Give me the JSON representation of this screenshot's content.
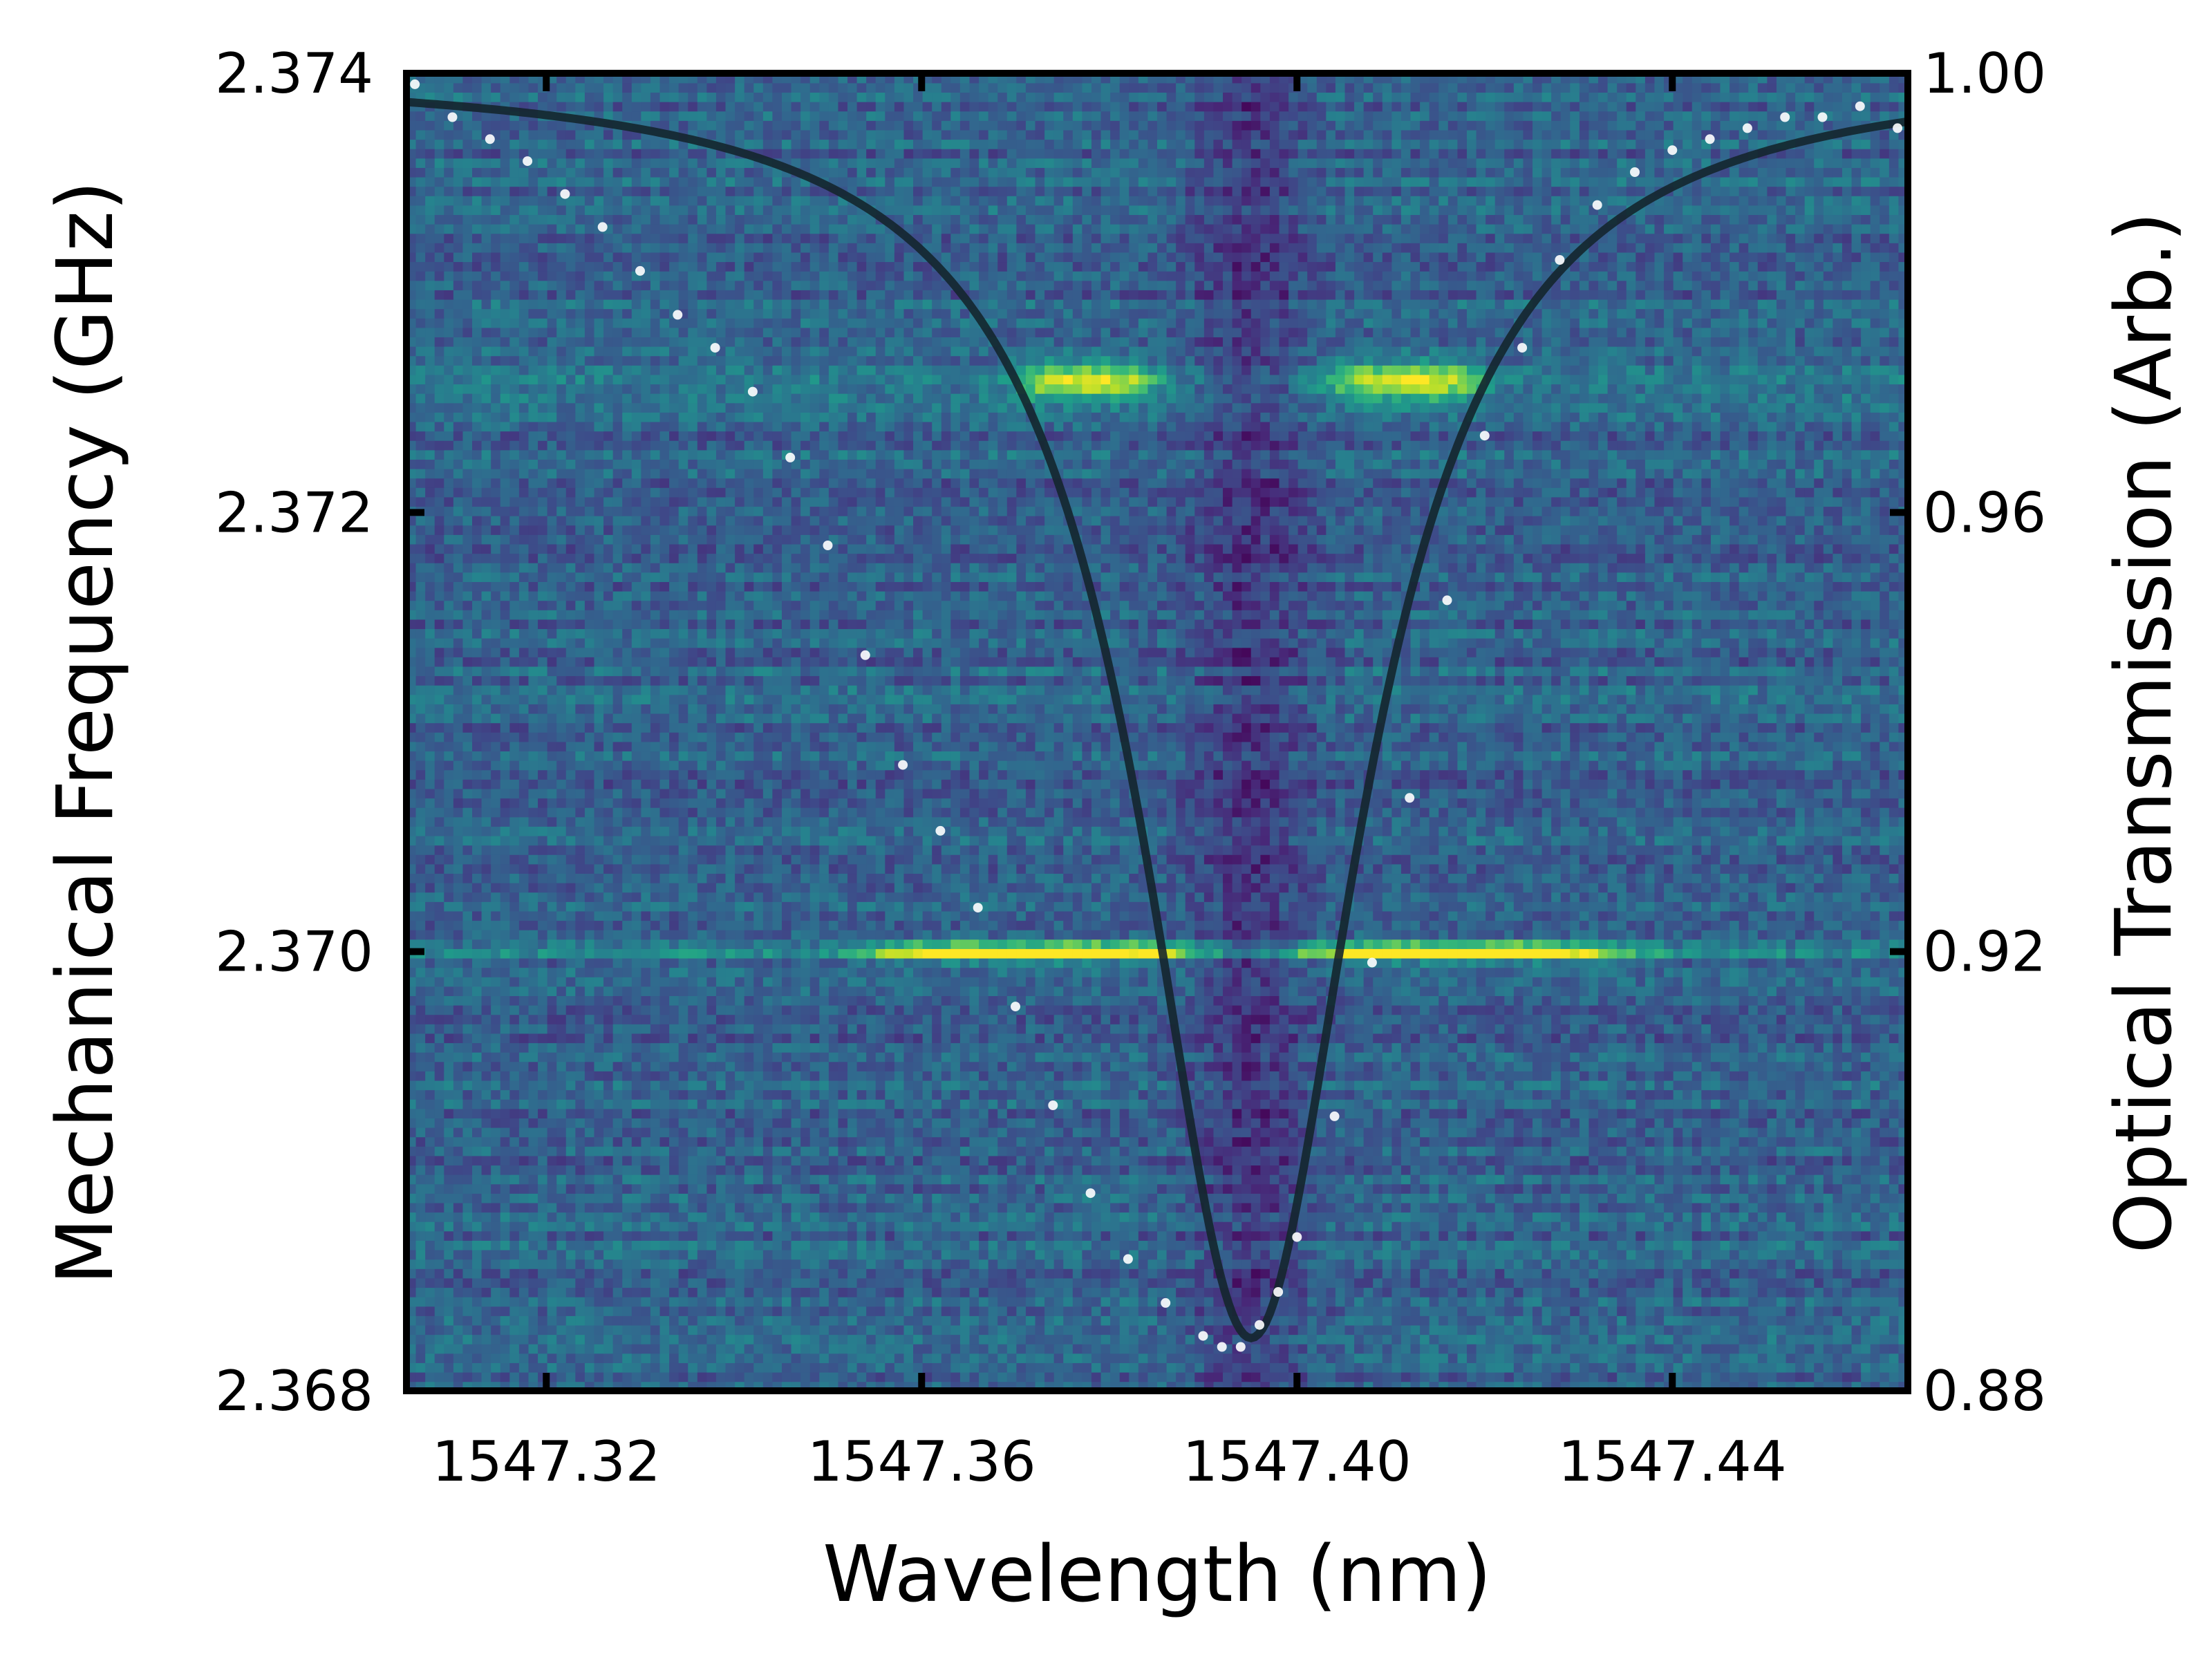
{
  "chart_data": {
    "type": "heatmap",
    "title": "",
    "xlabel": "Wavelength (nm)",
    "ylabel": "Mechanical Frequency (GHz)",
    "y2label": "Optical Transmission (Arb.)",
    "xlim": [
      1547.3051,
      1547.4651
    ],
    "ylim": [
      2.368,
      2.374
    ],
    "y2lim": [
      0.88,
      1.0
    ],
    "xticks": [
      1547.32,
      1547.36,
      1547.4,
      1547.44
    ],
    "xtick_labels": [
      "1547.32",
      "1547.36",
      "1547.40",
      "1547.44"
    ],
    "yticks": [
      2.368,
      2.37,
      2.372,
      2.374
    ],
    "ytick_labels": [
      "2.368",
      "2.370",
      "2.372",
      "2.374"
    ],
    "y2ticks": [
      0.88,
      0.92,
      0.96,
      1.0
    ],
    "y2tick_labels": [
      "0.88",
      "0.92",
      "0.96",
      "1.00"
    ],
    "colormap": "viridis",
    "heatmap_features": {
      "resonance_center_nm": 1547.3951,
      "background_level": 0.32,
      "center_dark_width_nm": 0.006,
      "bands": [
        {
          "freq_ghz": 2.37,
          "width_ghz": 4e-05,
          "peak_level": 1.0,
          "left_lobe_nm": [
            1547.355,
            1547.39
          ],
          "right_lobe_nm": [
            1547.4,
            1547.435
          ]
        },
        {
          "freq_ghz": 2.3726,
          "width_ghz": 8e-05,
          "peak_level": 0.85,
          "left_lobe_nm": [
            1547.37,
            1547.385
          ],
          "right_lobe_nm": [
            1547.403,
            1547.42
          ]
        }
      ]
    },
    "series": [
      {
        "type": "scatter",
        "axis": "right",
        "color": "#ffffff",
        "x": [
          1547.306,
          1547.31,
          1547.314,
          1547.318,
          1547.322,
          1547.326,
          1547.33,
          1547.334,
          1547.338,
          1547.342,
          1547.346,
          1547.35,
          1547.354,
          1547.358,
          1547.362,
          1547.366,
          1547.37,
          1547.374,
          1547.378,
          1547.382,
          1547.386,
          1547.39,
          1547.392,
          1547.394,
          1547.396,
          1547.398,
          1547.4,
          1547.404,
          1547.408,
          1547.412,
          1547.416,
          1547.42,
          1547.424,
          1547.428,
          1547.432,
          1547.436,
          1547.44,
          1547.444,
          1547.448,
          1547.452,
          1547.456,
          1547.46,
          1547.464
        ],
        "y": [
          0.999,
          0.996,
          0.994,
          0.992,
          0.989,
          0.986,
          0.982,
          0.978,
          0.975,
          0.971,
          0.965,
          0.957,
          0.947,
          0.937,
          0.931,
          0.924,
          0.915,
          0.906,
          0.898,
          0.892,
          0.888,
          0.885,
          0.884,
          0.884,
          0.886,
          0.889,
          0.894,
          0.905,
          0.919,
          0.934,
          0.952,
          0.967,
          0.975,
          0.983,
          0.988,
          0.991,
          0.993,
          0.994,
          0.995,
          0.996,
          0.996,
          0.997,
          0.995
        ]
      },
      {
        "type": "line",
        "axis": "right",
        "color": "#14262e",
        "model": "lorentzian",
        "x0": 1547.3951,
        "fwhm": 0.0285,
        "baseline": 1.0002,
        "depth": 0.1154
      }
    ]
  }
}
